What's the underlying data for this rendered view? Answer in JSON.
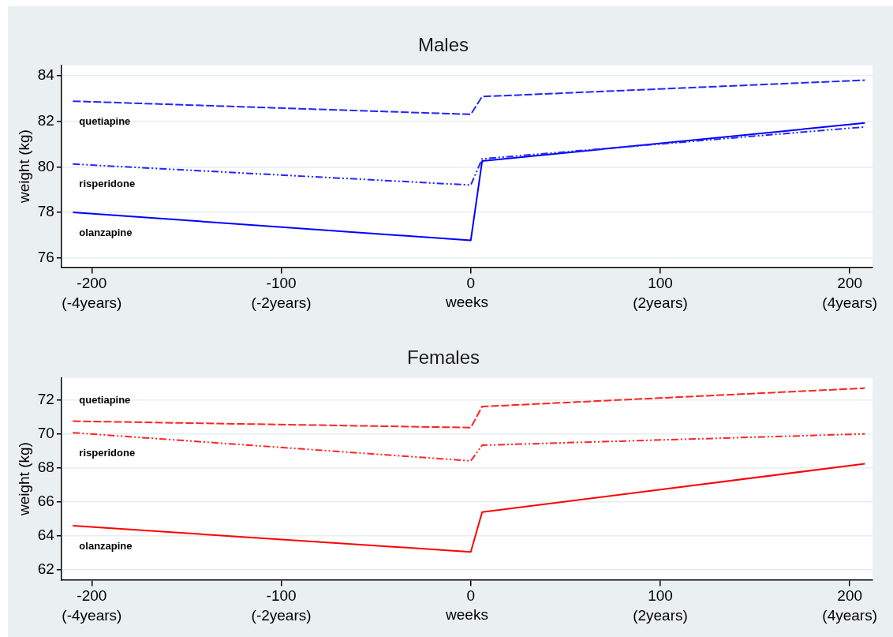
{
  "chart_data": [
    {
      "type": "line",
      "title": "Males",
      "xlabel": "weeks",
      "ylabel": "weight (kg)",
      "x": [
        -210,
        0,
        6,
        208
      ],
      "series": [
        {
          "name": "quetiapine",
          "color": "#2323ff",
          "line_style": "dashed",
          "values": [
            82.88,
            82.3,
            83.08,
            83.8
          ]
        },
        {
          "name": "risperidone",
          "color": "#2323ff",
          "line_style": "dotted",
          "values": [
            80.12,
            79.2,
            80.35,
            81.75
          ]
        },
        {
          "name": "olanzapine",
          "color": "#0000ff",
          "line_style": "solid",
          "values": [
            78.0,
            76.77,
            80.25,
            81.92
          ]
        }
      ],
      "xlim": [
        -216,
        212
      ],
      "ylim": [
        75.6,
        84.45
      ],
      "xticks": [
        -200,
        -100,
        0,
        100,
        200
      ],
      "x2lim": [
        -4.32,
        4.24
      ],
      "x2ticks": [
        {
          "value": -4,
          "label": "(-4years)"
        },
        {
          "value": -2,
          "label": "(-2years)"
        },
        {
          "value": 2,
          "label": "(2years)"
        },
        {
          "value": 4,
          "label": "(4years)"
        }
      ],
      "yticks": [
        76,
        78,
        80,
        82,
        84
      ],
      "grid": "y",
      "legend": false,
      "marker": "none"
    },
    {
      "type": "line",
      "title": "Females",
      "xlabel": "weeks",
      "ylabel": "weight (kg)",
      "x": [
        -210,
        0,
        6,
        208
      ],
      "series": [
        {
          "name": "quetiapine",
          "color": "#ff2323",
          "line_style": "dashed",
          "values": [
            70.75,
            70.37,
            71.61,
            72.7
          ]
        },
        {
          "name": "risperidone",
          "color": "#ff2323",
          "line_style": "dotted",
          "values": [
            70.07,
            68.41,
            69.33,
            70.0
          ]
        },
        {
          "name": "olanzapine",
          "color": "#ff0000",
          "line_style": "solid",
          "values": [
            64.58,
            63.04,
            65.39,
            68.24
          ]
        }
      ],
      "xlim": [
        -216,
        212
      ],
      "ylim": [
        61.4,
        73.3
      ],
      "xticks": [
        -200,
        -100,
        0,
        100,
        200
      ],
      "x2lim": [
        -4.32,
        4.24
      ],
      "x2ticks": [
        {
          "value": -4,
          "label": "(-4years)"
        },
        {
          "value": -2,
          "label": "(-2years)"
        },
        {
          "value": 2,
          "label": "(2years)"
        },
        {
          "value": 4,
          "label": "(4years)"
        }
      ],
      "yticks": [
        62,
        64,
        66,
        68,
        70,
        72
      ],
      "grid": "y",
      "legend": false,
      "marker": "none"
    }
  ]
}
